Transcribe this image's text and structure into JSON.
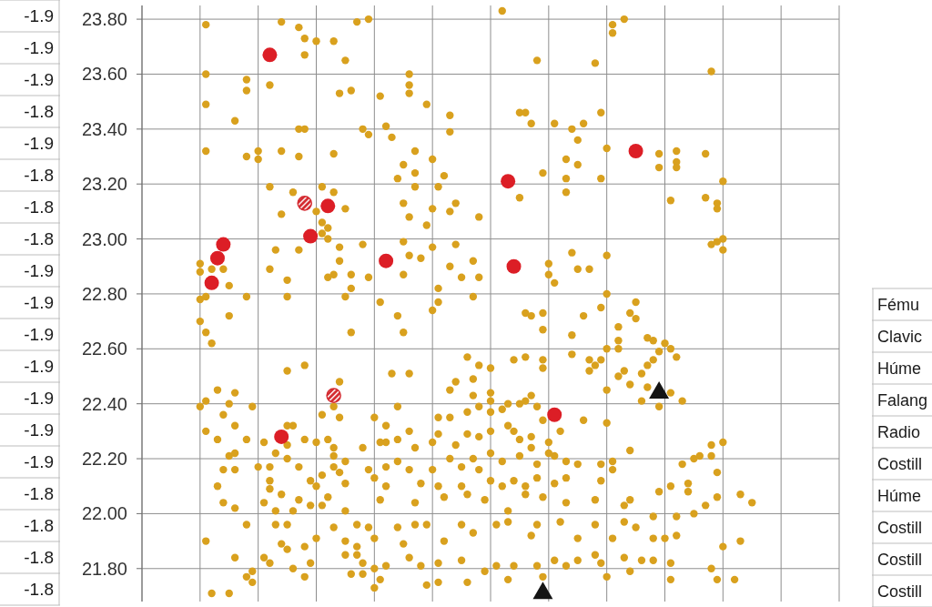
{
  "chart_data": [
    {
      "type": "other",
      "annotations": [
        "-1.9",
        "-1.9",
        "-1.9",
        "-1.8",
        "-1.9",
        "-1.8",
        "-1.8",
        "-1.8",
        "-1.9",
        "-1.9",
        "-1.9",
        "-1.9",
        "-1.9",
        "-1.9",
        "-1.9",
        "-1.8",
        "-1.8",
        "-1.8",
        "-1.8"
      ]
    },
    {
      "type": "scatter",
      "categories": [
        null,
        null,
        null,
        null,
        null,
        null,
        null,
        null,
        null,
        null,
        null,
        null,
        null,
        null,
        null,
        null,
        null,
        null,
        null,
        null,
        null,
        null,
        null,
        null,
        null,
        null,
        null,
        null,
        null,
        null,
        null,
        null,
        null,
        null,
        null,
        null,
        null,
        null,
        null,
        null,
        null,
        null,
        null,
        null,
        null,
        null,
        null,
        null,
        null,
        null,
        null,
        null,
        null,
        null,
        null,
        null,
        null,
        null,
        null,
        null,
        null,
        null,
        null,
        null,
        null,
        null,
        null,
        null,
        null,
        null,
        null,
        null,
        null,
        null,
        null,
        null,
        null,
        null,
        null,
        null,
        null,
        null,
        null,
        null,
        null,
        null,
        null,
        null,
        null,
        null,
        null,
        null,
        null,
        null,
        null,
        null,
        null,
        null,
        null,
        null,
        null,
        null,
        null,
        null,
        null,
        null,
        null,
        null,
        null,
        null,
        null,
        null,
        null,
        null,
        null,
        null,
        null,
        null,
        null,
        null,
        null
      ],
      "ylim": [
        21.68,
        23.85
      ],
      "yticks": [
        {
          "value": 21.8,
          "label": "21.80"
        },
        {
          "value": 22,
          "label": "22.00"
        },
        {
          "value": 22.2,
          "label": "22.20"
        },
        {
          "value": 22.4,
          "label": "22.40"
        },
        {
          "value": 22.6,
          "label": "22.60"
        },
        {
          "value": 22.8,
          "label": "22.80"
        },
        {
          "value": 23,
          "label": "23.00"
        },
        {
          "value": 23.2,
          "label": "23.20"
        },
        {
          "value": 23.4,
          "label": "23.40"
        },
        {
          "value": 23.6,
          "label": "23.60"
        },
        {
          "value": 23.8,
          "label": "23.80"
        }
      ],
      "grid": true,
      "series": [
        {
          "color": "#d9a11e",
          "marker": "circle",
          "values": [
            null,
            null,
            null,
            null,
            null,
            null,
            null,
            null,
            null,
            null,
            22.91,
            23.78,
            22.89,
            22.45,
            22.89,
            22.83,
            23.43,
            null,
            23.58,
            22.39,
            23.32,
            22.26,
            23.56,
            22.96,
            23.79,
            22.85,
            23.17,
            23.77,
            23.73,
            22.12,
            23.72,
            23.19,
            23.04,
            23.72,
            23.53,
            23.65,
            23.54,
            23.79,
            23.4,
            23.8,
            22.35,
            23.52,
            23.41,
            23.37,
            23.22,
            23.27,
            23.6,
            23.32,
            22.93,
            23.49,
            23.29,
            23.19,
            23.23,
            23.45,
            23.13,
            22.86,
            22.57,
            22.92,
            23.08,
            22.05,
            22.53,
            21.96,
            23.83,
            22.4,
            22.56,
            23.46,
            23.46,
            23.42,
            23.65,
            23.24,
            22.91,
            23.42,
            22.3,
            23.29,
            23.4,
            23.36,
            23.42,
            22.89,
            23.64,
            23.46,
            23.33,
            23.78,
            22.68,
            23.8,
            22.73,
            22.77,
            22.51,
            22.64,
            22.63,
            23.31,
            22.62,
            23.14,
            23.32,
            22.41,
            22.11,
            22.2,
            22.21,
            23.31,
            23.61,
            23.13,
            23.21,
            null,
            21.76,
            22.07,
            null,
            22.04,
            null,
            null,
            null,
            null,
            null,
            null,
            null,
            null,
            null,
            null,
            null,
            null,
            null,
            null,
            null
          ]
        },
        {
          "color": "#d9a11e",
          "marker": "circle",
          "values": [
            null,
            null,
            null,
            null,
            null,
            null,
            null,
            null,
            null,
            null,
            22.88,
            23.6,
            22.62,
            22.27,
            22.36,
            22.72,
            22.44,
            null,
            23.54,
            21.79,
            23.29,
            22.04,
            23.19,
            22.22,
            23.32,
            22.79,
            22.32,
            23.4,
            23.67,
            22.03,
            23.1,
            23.06,
            23.0,
            23.31,
            22.97,
            23.11,
            22.87,
            21.96,
            22.98,
            23.38,
            22.13,
            22.05,
            22.32,
            22.51,
            22.72,
            23.13,
            23.56,
            23.24,
            22.11,
            23.05,
            23.11,
            22.82,
            22.06,
            23.39,
            22.98,
            22.17,
            22.37,
            22.79,
            22.86,
            21.79,
            22.44,
            21.81,
            22.38,
            22.32,
            22.3,
            23.15,
            22.73,
            22.72,
            22.39,
            22.73,
            22.87,
            22.84,
            21.97,
            23.22,
            22.95,
            23.27,
            22.72,
            22.56,
            22.54,
            23.22,
            22.94,
            23.75,
            22.63,
            22.52,
            22.47,
            22.71,
            22.41,
            22.54,
            22.56,
            23.26,
            21.91,
            22.6,
            23.28,
            22.18,
            22.08,
            22.0,
            null,
            23.15,
            22.98,
            23.11,
            23.0,
            null,
            null,
            21.9,
            null,
            null,
            null,
            null,
            null,
            null,
            null,
            null,
            null,
            null,
            null,
            null,
            null,
            null,
            null,
            null,
            null
          ]
        },
        {
          "color": "#d9a11e",
          "marker": "circle",
          "values": [
            null,
            null,
            null,
            null,
            null,
            null,
            null,
            null,
            null,
            null,
            22.78,
            23.49,
            21.71,
            22.1,
            22.16,
            22.4,
            22.32,
            null,
            23.3,
            21.75,
            22.17,
            21.84,
            22.89,
            22.01,
            23.09,
            22.52,
            22.01,
            23.3,
            23.4,
            21.82,
            22.26,
            23.02,
            22.86,
            23.17,
            22.92,
            22.79,
            22.82,
            21.88,
            22.24,
            22.86,
            21.91,
            22.77,
            22.26,
            null,
            22.39,
            22.99,
            23.53,
            23.19,
            21.81,
            21.96,
            22.97,
            22.77,
            21.9,
            23.1,
            22.48,
            22.1,
            22.29,
            22.49,
            22.54,
            null,
            22.41,
            null,
            22.19,
            22.01,
            22.12,
            22.4,
            22.57,
            22.43,
            22.18,
            22.67,
            22.26,
            22.21,
            null,
            23.17,
            22.65,
            22.89,
            22.34,
            22.52,
            22.05,
            22.75,
            22.8,
            22.19,
            22.6,
            22.03,
            22.05,
            21.95,
            21.83,
            22.46,
            21.99,
            22.59,
            null,
            22.44,
            23.26,
            null,
            null,
            null,
            null,
            22.03,
            22.21,
            22.99,
            22.96,
            null,
            null,
            null,
            null,
            null,
            null,
            null,
            null,
            null,
            null,
            null,
            null,
            null,
            null,
            null,
            null,
            null,
            null,
            null,
            null
          ]
        },
        {
          "color": "#d9a11e",
          "marker": "circle",
          "values": [
            null,
            null,
            null,
            null,
            null,
            null,
            null,
            null,
            null,
            null,
            22.7,
            23.32,
            null,
            null,
            22.04,
            22.21,
            22.22,
            null,
            22.79,
            null,
            null,
            null,
            22.17,
            21.96,
            22.07,
            22.32,
            21.8,
            22.96,
            22.54,
            null,
            22.1,
            22.36,
            22.27,
            22.87,
            22.35,
            22.19,
            22.66,
            21.85,
            21.82,
            22.16,
            21.8,
            22.26,
            22.17,
            null,
            22.27,
            22.87,
            23.08,
            22.24,
            null,
            21.74,
            22.74,
            22.35,
            null,
            22.9,
            22.25,
            21.96,
            22.07,
            22.43,
            22.39,
            null,
            22.37,
            null,
            22.1,
            21.97,
            21.81,
            22.27,
            22.41,
            22.28,
            22.13,
            22.56,
            22.22,
            22.11,
            null,
            22.19,
            22.58,
            22.18,
            null,
            null,
            21.96,
            22.56,
            22.6,
            22.16,
            22.5,
            21.97,
            22.23,
            null,
            null,
            null,
            21.91,
            22.39,
            null,
            22.1,
            22.57,
            null,
            null,
            null,
            null,
            null,
            22.25,
            22.15,
            22.26,
            null,
            null,
            null,
            null,
            null,
            null,
            null,
            null,
            null,
            null,
            null,
            null,
            null,
            null,
            null,
            null,
            null,
            null,
            null,
            null
          ]
        },
        {
          "color": "#d9a11e",
          "marker": "circle",
          "values": [
            null,
            null,
            null,
            null,
            null,
            null,
            null,
            null,
            null,
            null,
            22.39,
            22.79,
            null,
            null,
            null,
            21.71,
            22.16,
            null,
            22.27,
            null,
            null,
            null,
            22.12,
            null,
            21.89,
            22.25,
            null,
            22.17,
            22.27,
            null,
            21.91,
            22.14,
            22.06,
            22.39,
            22.48,
            22.11,
            21.78,
            null,
            21.78,
            21.95,
            21.73,
            21.76,
            22.1,
            null,
            22.19,
            22.66,
            22.94,
            22.04,
            null,
            null,
            22.26,
            22.29,
            null,
            22.45,
            null,
            21.83,
            21.75,
            22.2,
            22.28,
            null,
            22.3,
            null,
            null,
            21.76,
            null,
            22.21,
            22.1,
            22.24,
            21.96,
            22.53,
            null,
            21.83,
            null,
            22.13,
            null,
            21.91,
            null,
            null,
            21.85,
            22.18,
            22.45,
            21.91,
            null,
            21.84,
            21.79,
            null,
            null,
            null,
            21.83,
            22.08,
            null,
            21.82,
            21.99,
            null,
            null,
            null,
            null,
            null,
            21.8,
            22.06,
            21.88,
            null,
            null,
            null,
            null,
            null,
            null,
            null,
            null,
            null,
            null,
            null,
            null,
            null,
            null,
            null,
            null,
            null,
            null,
            null,
            null
          ]
        },
        {
          "color": "#d9a11e",
          "marker": "circle",
          "values": [
            null,
            null,
            null,
            null,
            null,
            null,
            null,
            null,
            null,
            null,
            null,
            22.66,
            null,
            null,
            null,
            null,
            22.02,
            null,
            21.96,
            null,
            null,
            null,
            22.09,
            null,
            null,
            22.2,
            null,
            22.05,
            21.88,
            null,
            null,
            22.03,
            null,
            22.24,
            22.15,
            22.01,
            null,
            null,
            null,
            null,
            null,
            null,
            21.81,
            null,
            21.95,
            21.89,
            22.51,
            21.96,
            null,
            null,
            22.16,
            22.1,
            null,
            22.35,
            null,
            null,
            null,
            21.93,
            22.16,
            null,
            22.22,
            null,
            null,
            null,
            null,
            null,
            22.07,
            21.92,
            21.81,
            22.34,
            null,
            null,
            null,
            22.04,
            null,
            21.83,
            null,
            null,
            null,
            22.12,
            22.33,
            null,
            null,
            null,
            null,
            null,
            null,
            null,
            null,
            null,
            null,
            21.76,
            21.92,
            null,
            null,
            null,
            null,
            null,
            null,
            21.76,
            null,
            null,
            null,
            null,
            null,
            null,
            null,
            null,
            null,
            null,
            null,
            null,
            null,
            null,
            null,
            null,
            null,
            null,
            null,
            null,
            null
          ]
        },
        {
          "color": "#d9a11e",
          "marker": "circle",
          "values": [
            null,
            null,
            null,
            null,
            null,
            null,
            null,
            null,
            null,
            null,
            null,
            22.41,
            null,
            null,
            null,
            null,
            21.84,
            null,
            21.77,
            null,
            null,
            null,
            21.82,
            null,
            null,
            21.96,
            null,
            null,
            21.77,
            null,
            null,
            null,
            null,
            22.21,
            null,
            21.9,
            null,
            null,
            null,
            null,
            null,
            null,
            null,
            null,
            null,
            null,
            22.3,
            null,
            null,
            null,
            null,
            21.82,
            null,
            22.2,
            null,
            null,
            null,
            null,
            null,
            null,
            22.12,
            null,
            null,
            null,
            null,
            null,
            null,
            null,
            null,
            22.06,
            null,
            null,
            null,
            21.81,
            null,
            null,
            null,
            null,
            null,
            21.82,
            21.77,
            null,
            null,
            null,
            null,
            null,
            null,
            null,
            null,
            null,
            null,
            null,
            null,
            null,
            null,
            null,
            null,
            null,
            null,
            null,
            null,
            null,
            null,
            null,
            null,
            null,
            null,
            null,
            null,
            null,
            null,
            null,
            null,
            null,
            null,
            null,
            null,
            null,
            null,
            null,
            null
          ]
        },
        {
          "color": "#d9a11e",
          "marker": "circle",
          "values": [
            null,
            null,
            null,
            null,
            null,
            null,
            null,
            null,
            null,
            null,
            null,
            22.3,
            null,
            null,
            null,
            null,
            null,
            null,
            null,
            null,
            null,
            null,
            null,
            null,
            null,
            21.87,
            null,
            null,
            null,
            null,
            null,
            null,
            null,
            22.17,
            null,
            21.85,
            null,
            null,
            null,
            null,
            null,
            null,
            null,
            null,
            null,
            null,
            22.16,
            null,
            null,
            null,
            null,
            21.75,
            null,
            null,
            null,
            null,
            null,
            null,
            null,
            null,
            null,
            null,
            null,
            null,
            null,
            null,
            null,
            null,
            null,
            21.77,
            null,
            null,
            null,
            null,
            null,
            null,
            null,
            null,
            null,
            null,
            null,
            null,
            null,
            null,
            null,
            null,
            null,
            null,
            null,
            null,
            null,
            null,
            null,
            null,
            null,
            null,
            null,
            null,
            null,
            null,
            null,
            null,
            null,
            null,
            null,
            null,
            null,
            null,
            null,
            null,
            null,
            null,
            null,
            null,
            null,
            null,
            null,
            null,
            null,
            null,
            null
          ]
        },
        {
          "color": "#d9a11e",
          "marker": "circle",
          "values": [
            null,
            null,
            null,
            null,
            null,
            null,
            null,
            null,
            null,
            null,
            null,
            21.9,
            null,
            null,
            null,
            null,
            null,
            null,
            null,
            null,
            null,
            null,
            null,
            null,
            null,
            null,
            null,
            null,
            null,
            null,
            null,
            null,
            null,
            21.95,
            null,
            null,
            null,
            null,
            null,
            null,
            null,
            null,
            null,
            null,
            null,
            null,
            21.84,
            null,
            null,
            null,
            null,
            null,
            null,
            null,
            null,
            null,
            null,
            null,
            null,
            null,
            null,
            null,
            null,
            null,
            null,
            null,
            null,
            null,
            null,
            null,
            null,
            null,
            null,
            null,
            null,
            null,
            null,
            null,
            null,
            null,
            null,
            null,
            null,
            null,
            null,
            null,
            null,
            null,
            null,
            null,
            null,
            null,
            null,
            null,
            null,
            null,
            null,
            null,
            null,
            null,
            null,
            null,
            null,
            null,
            null,
            null,
            null,
            null,
            null,
            null,
            null,
            null,
            null,
            null,
            null,
            null,
            null,
            null,
            null,
            null,
            null
          ]
        },
        {
          "color": "#dc1e26",
          "marker": "circle",
          "values": [
            null,
            null,
            null,
            null,
            null,
            null,
            null,
            null,
            null,
            null,
            null,
            null,
            22.84,
            22.93,
            22.98,
            null,
            null,
            null,
            null,
            null,
            null,
            null,
            23.67,
            null,
            22.28,
            null,
            null,
            null,
            null,
            23.01,
            null,
            null,
            23.12,
            null,
            null,
            null,
            null,
            null,
            null,
            null,
            null,
            null,
            22.92,
            null,
            null,
            null,
            null,
            null,
            null,
            null,
            null,
            null,
            null,
            null,
            null,
            null,
            null,
            null,
            null,
            null,
            null,
            null,
            null,
            23.21,
            22.9,
            null,
            null,
            null,
            null,
            null,
            null,
            22.36,
            null,
            null,
            null,
            null,
            null,
            null,
            null,
            null,
            null,
            null,
            null,
            null,
            null,
            23.32,
            null,
            null,
            null,
            null,
            null,
            null,
            null,
            null,
            null,
            null,
            null,
            null,
            null,
            null,
            null,
            null,
            null,
            null,
            null,
            null,
            null,
            null,
            null,
            null,
            null,
            null,
            null,
            null,
            null,
            null,
            null,
            null,
            null,
            null,
            null
          ]
        },
        {
          "color": "#d42a30",
          "marker": "circle",
          "values": [
            null,
            null,
            null,
            null,
            null,
            null,
            null,
            null,
            null,
            null,
            null,
            null,
            null,
            null,
            null,
            null,
            null,
            null,
            null,
            null,
            null,
            null,
            null,
            null,
            null,
            null,
            null,
            null,
            23.13,
            null,
            null,
            null,
            null,
            22.43,
            null,
            null,
            null,
            null,
            null,
            null,
            null,
            null,
            null,
            null,
            null,
            null,
            null,
            null,
            null,
            null,
            null,
            null,
            null,
            null,
            null,
            null,
            null,
            null,
            null,
            null,
            null,
            null,
            null,
            null,
            null,
            null,
            null,
            null,
            null,
            null,
            null,
            null,
            null,
            null,
            null,
            null,
            null,
            null,
            null,
            null,
            null,
            null,
            null,
            null,
            null,
            null,
            null,
            null,
            null,
            null,
            null,
            null,
            null,
            null,
            null,
            null,
            null,
            null,
            null,
            null,
            null,
            null,
            null,
            null,
            null,
            null,
            null,
            null,
            null,
            null,
            null,
            null,
            null,
            null,
            null,
            null,
            null,
            null,
            null,
            null,
            null
          ]
        },
        {
          "color": "#141414",
          "marker": "triangle",
          "values": [
            null,
            null,
            null,
            null,
            null,
            null,
            null,
            null,
            null,
            null,
            null,
            null,
            null,
            null,
            null,
            null,
            null,
            null,
            null,
            null,
            null,
            null,
            null,
            null,
            null,
            null,
            null,
            null,
            null,
            null,
            null,
            null,
            null,
            null,
            null,
            null,
            null,
            null,
            null,
            null,
            null,
            null,
            null,
            null,
            null,
            null,
            null,
            null,
            null,
            null,
            null,
            null,
            null,
            null,
            null,
            null,
            null,
            null,
            null,
            null,
            null,
            null,
            null,
            null,
            null,
            null,
            null,
            null,
            null,
            21.71,
            null,
            null,
            null,
            null,
            null,
            null,
            null,
            null,
            null,
            null,
            null,
            null,
            null,
            null,
            null,
            null,
            null,
            null,
            null,
            22.44,
            null,
            null,
            null,
            null,
            null,
            null,
            null,
            null,
            null,
            null,
            null,
            null,
            null,
            null,
            null,
            null,
            null,
            null,
            null,
            null,
            null,
            null,
            null,
            null,
            null,
            null,
            null,
            null,
            null,
            null,
            null
          ]
        }
      ]
    },
    {
      "type": "other",
      "annotations": [
        "Fému",
        "Clavic",
        "Húme",
        "Falang",
        "Radio",
        "Costill",
        "Húme",
        "Costill",
        "Costill",
        "Costill"
      ]
    }
  ]
}
